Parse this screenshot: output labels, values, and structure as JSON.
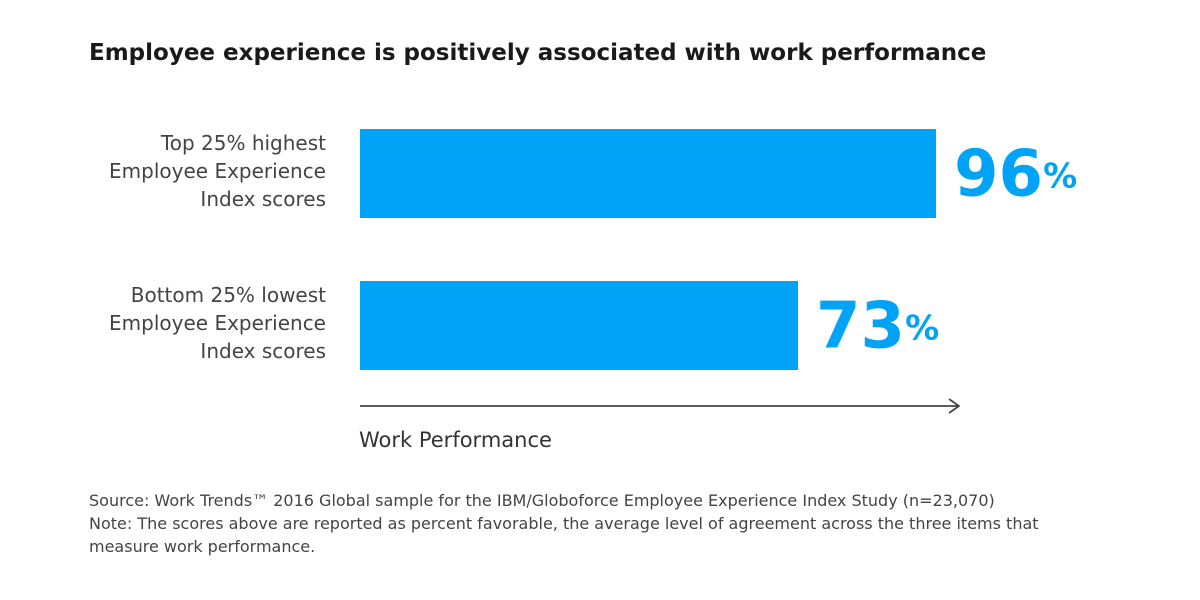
{
  "chart_data": {
    "type": "bar",
    "orientation": "horizontal",
    "title": "Employee experience is positively associated with work performance",
    "categories": [
      "Top 25% highest\nEmployee Experience\nIndex scores",
      "Bottom 25% lowest\nEmployee Experience\nIndex scores"
    ],
    "values": [
      96,
      73
    ],
    "value_labels": [
      "96%",
      "73%"
    ],
    "color": "#00a3f5",
    "xlim": [
      0,
      100
    ],
    "x_label": "Work Performance",
    "source": "Source: Work Trends™ 2016 Global sample for the IBM/Globoforce Employee Experience Index Study (n=23,070)",
    "note": "Note: The scores above are reported as percent favorable, the average level of agreement across the three items that measure work performance."
  }
}
